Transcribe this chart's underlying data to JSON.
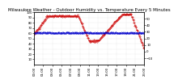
{
  "title": "Milwaukee Weather - Outdoor Humidity vs. Temperature Every 5 Minutes",
  "bg_color": "#ffffff",
  "grid_color": "#c0c0c0",
  "humidity_color": "#cc0000",
  "temp_color": "#0000cc",
  "ylim_humidity": [
    0,
    100
  ],
  "ylim_temp": [
    -20,
    60
  ],
  "title_fontsize": 4.0,
  "tick_fontsize": 2.8,
  "n_points": 288
}
